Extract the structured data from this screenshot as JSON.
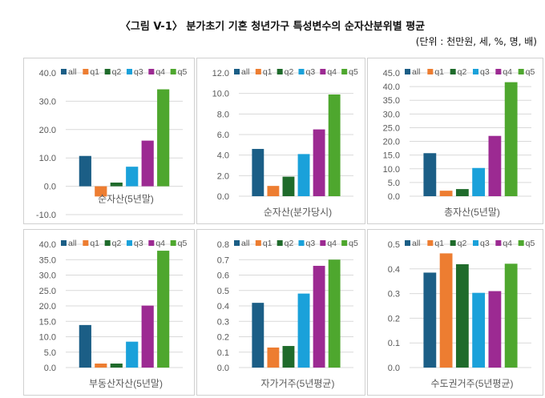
{
  "title": "〈그림 V-1〉 분가초기 기혼 청년가구 특성변수의 순자산분위별 평균",
  "unit_note": "(단위 : 천만원, 세, %, 명, 배)",
  "colors": {
    "all": "#1b5e86",
    "q1": "#ed7d31",
    "q2": "#1f6b2b",
    "q3": "#1aa1da",
    "q4": "#9c2a92",
    "q5": "#4ea72e"
  },
  "chart_data": [
    {
      "type": "bar",
      "title": "순자산(5년말)",
      "legend": [
        "all",
        "q1",
        "q2",
        "q3",
        "q4",
        "q5"
      ],
      "values": [
        10.7,
        -3.6,
        1.3,
        6.9,
        16.1,
        34.2
      ],
      "ylim": [
        -10,
        40
      ],
      "yticks": [
        "-10.0",
        "0.0",
        "10.0",
        "20.0",
        "30.0",
        "40.0"
      ],
      "ytick_values": [
        -10,
        0,
        10,
        20,
        30,
        40
      ],
      "legend_position": "top"
    },
    {
      "type": "bar",
      "title": "순자산(분가당시)",
      "legend": [
        "all",
        "q1",
        "q2",
        "q3",
        "q4",
        "q5"
      ],
      "values": [
        4.6,
        1.0,
        1.9,
        4.1,
        6.5,
        9.9
      ],
      "ylim": [
        0,
        12
      ],
      "yticks": [
        "0.0",
        "2.0",
        "4.0",
        "6.0",
        "8.0",
        "10.0",
        "12.0"
      ],
      "ytick_values": [
        0,
        2,
        4,
        6,
        8,
        10,
        12
      ],
      "legend_position": "top"
    },
    {
      "type": "bar",
      "title": "총자산(5년말)",
      "legend": [
        "all",
        "q1",
        "q2",
        "q3",
        "q4",
        "q5"
      ],
      "values": [
        15.7,
        2.0,
        2.6,
        10.3,
        22.0,
        41.6
      ],
      "ylim": [
        0,
        45
      ],
      "yticks": [
        "0.0",
        "5.0",
        "10.0",
        "15.0",
        "20.0",
        "25.0",
        "30.0",
        "35.0",
        "40.0",
        "45.0"
      ],
      "ytick_values": [
        0,
        5,
        10,
        15,
        20,
        25,
        30,
        35,
        40,
        45
      ],
      "legend_position": "top"
    },
    {
      "type": "bar",
      "title": "부동산자산(5년말)",
      "legend": [
        "all",
        "q1",
        "q2",
        "q3",
        "q4",
        "q5"
      ],
      "values": [
        13.8,
        1.3,
        1.3,
        8.4,
        20.1,
        37.9
      ],
      "ylim": [
        0,
        40
      ],
      "yticks": [
        "0.0",
        "5.0",
        "10.0",
        "15.0",
        "20.0",
        "25.0",
        "30.0",
        "35.0",
        "40.0"
      ],
      "ytick_values": [
        0,
        5,
        10,
        15,
        20,
        25,
        30,
        35,
        40
      ],
      "legend_position": "top"
    },
    {
      "type": "bar",
      "title": "자가거주(5년평균)",
      "legend": [
        "all",
        "q1",
        "q2",
        "q3",
        "q4",
        "q5"
      ],
      "values": [
        0.42,
        0.13,
        0.14,
        0.48,
        0.66,
        0.7
      ],
      "ylim": [
        0,
        0.8
      ],
      "yticks": [
        "0.0",
        "0.1",
        "0.2",
        "0.3",
        "0.4",
        "0.5",
        "0.6",
        "0.7",
        "0.8"
      ],
      "ytick_values": [
        0,
        0.1,
        0.2,
        0.3,
        0.4,
        0.5,
        0.6,
        0.7,
        0.8
      ],
      "legend_position": "top"
    },
    {
      "type": "bar",
      "title": "수도권거주(5년평균)",
      "legend": [
        "all",
        "q1",
        "q2",
        "q3",
        "q4",
        "q5"
      ],
      "values": [
        0.385,
        0.463,
        0.419,
        0.303,
        0.31,
        0.421
      ],
      "ylim": [
        0,
        0.5
      ],
      "yticks": [
        "0.0",
        "0.1",
        "0.2",
        "0.3",
        "0.4",
        "0.5"
      ],
      "ytick_values": [
        0,
        0.1,
        0.2,
        0.3,
        0.4,
        0.5
      ],
      "legend_position": "top"
    }
  ]
}
